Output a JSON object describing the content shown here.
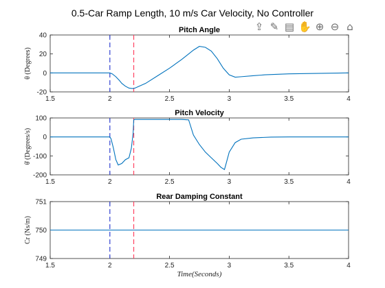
{
  "figure": {
    "title": "0.5-Car Ramp Length,  10 m/s Car Velocity,  No Controller"
  },
  "toolbar": [
    {
      "name": "export-icon",
      "glyph": "⇪"
    },
    {
      "name": "brush-icon",
      "glyph": "✎"
    },
    {
      "name": "data-tip-icon",
      "glyph": "▤"
    },
    {
      "name": "pan-hand-icon",
      "glyph": "✋"
    },
    {
      "name": "zoom-in-icon",
      "glyph": "⊕"
    },
    {
      "name": "zoom-out-icon",
      "glyph": "⊖"
    },
    {
      "name": "home-icon",
      "glyph": "⌂"
    }
  ],
  "colors": {
    "line": "#0072BD",
    "vline_blue": "#3040d0",
    "vline_red": "#ff4060"
  },
  "chart_data": [
    {
      "type": "line",
      "id": "pitch-angle",
      "title": "Pitch Angle",
      "ylabel": "θ (Degrees)",
      "xlabel": "",
      "xlim": [
        1.5,
        4
      ],
      "ylim": [
        -20,
        40
      ],
      "xticks": [
        1.5,
        2,
        2.5,
        3,
        3.5,
        4
      ],
      "xtick_labels": [
        "1.5",
        "2",
        "2.5",
        "3",
        "3.5",
        "4"
      ],
      "yticks": [
        -20,
        0,
        20,
        40
      ],
      "ytick_labels": [
        "-20",
        "0",
        "20",
        "40"
      ],
      "vlines": [
        {
          "x": 2.0,
          "style": "blue-dash"
        },
        {
          "x": 2.2,
          "style": "red-dash"
        }
      ],
      "series": [
        {
          "x": [
            1.5,
            2.0,
            2.02,
            2.05,
            2.08,
            2.1,
            2.13,
            2.16,
            2.19,
            2.21,
            2.3,
            2.4,
            2.5,
            2.6,
            2.65,
            2.7,
            2.75,
            2.8,
            2.85,
            2.9,
            2.95,
            3.0,
            3.05,
            3.1,
            3.2,
            3.3,
            3.5,
            4.0
          ],
          "y": [
            0,
            0,
            -1,
            -4,
            -8,
            -11,
            -14,
            -16,
            -16.5,
            -16,
            -11,
            -3,
            5,
            14,
            19,
            24,
            28,
            27,
            23,
            15,
            5,
            -2,
            -4.5,
            -4,
            -3,
            -2,
            -1,
            0
          ]
        }
      ]
    },
    {
      "type": "line",
      "id": "pitch-velocity",
      "title": "Pitch Velocity",
      "ylabel": "θ̇ (Degrees/s)",
      "xlabel": "",
      "xlim": [
        1.5,
        4
      ],
      "ylim": [
        -200,
        100
      ],
      "xticks": [
        1.5,
        2,
        2.5,
        3,
        3.5,
        4
      ],
      "xtick_labels": [
        "1.5",
        "2",
        "2.5",
        "3",
        "3.5",
        "4"
      ],
      "yticks": [
        -200,
        -100,
        0,
        100
      ],
      "ytick_labels": [
        "-200",
        "-100",
        "0",
        "100"
      ],
      "vlines": [
        {
          "x": 2.0,
          "style": "blue-dash"
        },
        {
          "x": 2.2,
          "style": "red-dash"
        }
      ],
      "series": [
        {
          "x": [
            1.5,
            2.0,
            2.01,
            2.03,
            2.05,
            2.07,
            2.1,
            2.13,
            2.16,
            2.18,
            2.195,
            2.2,
            2.21,
            2.25,
            2.4,
            2.6,
            2.66,
            2.7,
            2.75,
            2.8,
            2.85,
            2.9,
            2.93,
            2.96,
            2.97,
            3.0,
            3.05,
            3.1,
            3.2,
            3.35,
            3.5,
            3.7,
            4.0
          ],
          "y": [
            0,
            0,
            -10,
            -60,
            -120,
            -148,
            -140,
            -120,
            -110,
            -60,
            20,
            90,
            92,
            92,
            92,
            92,
            90,
            10,
            -40,
            -80,
            -110,
            -140,
            -160,
            -172,
            -150,
            -80,
            -30,
            -12,
            -5,
            -1,
            0,
            0,
            0
          ]
        }
      ]
    },
    {
      "type": "line",
      "id": "rear-damping",
      "title": "Rear Damping Constant",
      "ylabel": "Cr (Ns/m)",
      "xlabel": "Time(Seconds)",
      "xlim": [
        1.5,
        4
      ],
      "ylim": [
        749,
        751
      ],
      "xticks": [
        1.5,
        2,
        2.5,
        3,
        3.5,
        4
      ],
      "xtick_labels": [
        "1.5",
        "2",
        "2.5",
        "3",
        "3.5",
        "4"
      ],
      "yticks": [
        749,
        750,
        751
      ],
      "ytick_labels": [
        "749",
        "750",
        "751"
      ],
      "vlines": [
        {
          "x": 2.0,
          "style": "blue-dash"
        },
        {
          "x": 2.2,
          "style": "red-dash"
        }
      ],
      "series": [
        {
          "x": [
            1.5,
            4.0
          ],
          "y": [
            750,
            750
          ]
        }
      ]
    }
  ]
}
